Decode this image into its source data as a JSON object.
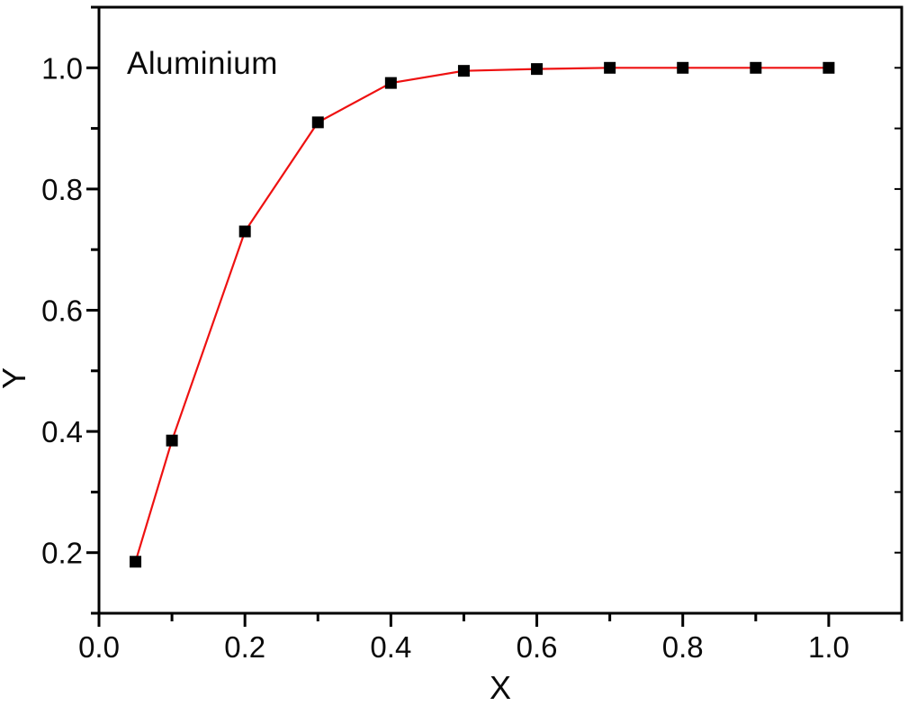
{
  "chart_data": {
    "type": "line",
    "annotation": "Aluminium",
    "xlabel": "X",
    "ylabel": "Y",
    "xlim": [
      0.0,
      1.1
    ],
    "ylim": [
      0.1,
      1.1
    ],
    "grid": false,
    "legend": "none",
    "frame": "box",
    "background_color": "#ffffff",
    "axis_color": "#000000",
    "tick_label_color": "#0a0a0a",
    "x_major_ticks": [
      0.0,
      0.2,
      0.4,
      0.6,
      0.8,
      1.0
    ],
    "x_minor_ticks": [
      0.1,
      0.3,
      0.5,
      0.7,
      0.9,
      1.1
    ],
    "x_tick_labels": [
      "0.0",
      "0.2",
      "0.4",
      "0.6",
      "0.8",
      "1.0"
    ],
    "y_major_ticks": [
      0.2,
      0.4,
      0.6,
      0.8,
      1.0
    ],
    "y_minor_ticks": [
      0.1,
      0.3,
      0.5,
      0.7,
      0.9,
      1.1
    ],
    "y_tick_labels": [
      "0.2",
      "0.4",
      "0.6",
      "0.8",
      "1.0"
    ],
    "right_axis_ticks": [
      0.2,
      0.3,
      0.4,
      0.5,
      0.6,
      0.7,
      0.8,
      0.9,
      1.0
    ],
    "series": [
      {
        "name": "Aluminium",
        "x": [
          0.05,
          0.1,
          0.2,
          0.3,
          0.4,
          0.5,
          0.6,
          0.7,
          0.8,
          0.9,
          1.0
        ],
        "y": [
          0.185,
          0.385,
          0.73,
          0.91,
          0.975,
          0.995,
          0.998,
          1.0,
          1.0,
          1.0,
          1.0
        ],
        "line_color": "#ee1111",
        "marker": "square",
        "marker_color": "#000000"
      }
    ]
  }
}
